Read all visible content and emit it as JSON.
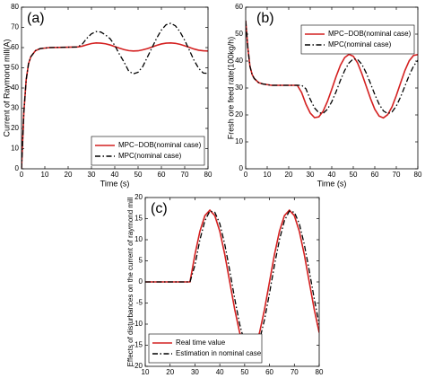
{
  "chart_data": [
    {
      "type": "line",
      "panel_label": "(a)",
      "xlabel": "Time (s)",
      "ylabel": "Current of Raymond mill(A)",
      "x": [
        0,
        1,
        2,
        3,
        4,
        6,
        8,
        12,
        16,
        20,
        24,
        26,
        28,
        30,
        32,
        34,
        36,
        38,
        40,
        42,
        44,
        46,
        48,
        50,
        52,
        54,
        56,
        58,
        60,
        62,
        64,
        66,
        68,
        70,
        72,
        74,
        76,
        78,
        80
      ],
      "series": [
        {
          "name": "MPC−DOB(nominal case)",
          "color": "#d42020",
          "style": "solid",
          "values": [
            0,
            28,
            44,
            52,
            55.5,
            58.5,
            59.5,
            60,
            60.1,
            60.2,
            60.3,
            60.7,
            61.4,
            62.0,
            62.3,
            62.2,
            61.9,
            61.3,
            60.5,
            59.7,
            59.0,
            58.5,
            58.3,
            58.4,
            58.9,
            59.5,
            60.3,
            61.1,
            61.8,
            62.2,
            62.3,
            62.1,
            61.6,
            60.9,
            60.1,
            59.3,
            58.7,
            58.4,
            58.3
          ]
        },
        {
          "name": "MPC(nominal case)",
          "color": "#000000",
          "style": "dashdot",
          "values": [
            0,
            28,
            44,
            52,
            55.5,
            58.5,
            59.5,
            60,
            60.1,
            60.2,
            60.3,
            61.6,
            64.6,
            66.8,
            67.9,
            67.7,
            66.3,
            64.4,
            61.1,
            56.7,
            52.8,
            48.3,
            47.0,
            47.8,
            50.6,
            55.3,
            60.0,
            64.7,
            68.7,
            71.3,
            72.0,
            70.8,
            67.8,
            63.6,
            58.7,
            53.7,
            49.7,
            47.4,
            47.2
          ]
        }
      ],
      "xlim": [
        0,
        80
      ],
      "xticks": [
        0,
        10,
        20,
        30,
        40,
        50,
        60,
        70,
        80
      ],
      "ylim": [
        0,
        80
      ],
      "yticks": [
        0,
        10,
        20,
        30,
        40,
        50,
        60,
        70,
        80
      ],
      "legend": "lower right"
    },
    {
      "type": "line",
      "panel_label": "(b)",
      "xlabel": "Time (s)",
      "ylabel": "Fresh ore feed rate(100kg/h)",
      "x": [
        0,
        1,
        2,
        3,
        4,
        6,
        8,
        12,
        16,
        20,
        24,
        26,
        28,
        30,
        32,
        34,
        36,
        38,
        40,
        42,
        44,
        46,
        48,
        50,
        52,
        54,
        56,
        58,
        60,
        62,
        64,
        66,
        68,
        70,
        72,
        74,
        76,
        78,
        80
      ],
      "series": [
        {
          "name": "MPC−DOB(nominal case)",
          "color": "#d42020",
          "style": "solid",
          "values": [
            55,
            45,
            38,
            35,
            33.5,
            32,
            31.5,
            31,
            31,
            31,
            31,
            28.3,
            24.0,
            20.7,
            19.0,
            19.3,
            21.4,
            25.0,
            29.5,
            34.2,
            38.4,
            41.3,
            42.5,
            41.8,
            39.3,
            35.3,
            30.7,
            26.1,
            22.1,
            19.6,
            18.9,
            20.1,
            23.0,
            27.2,
            31.9,
            36.5,
            40.1,
            42.1,
            42.4
          ]
        },
        {
          "name": "MPC(nominal case)",
          "color": "#000000",
          "style": "dashdot",
          "values": [
            55,
            45,
            38,
            35,
            33.5,
            32,
            31.5,
            31,
            31,
            31,
            31,
            31.0,
            29.7,
            25.8,
            22.6,
            20.8,
            20.6,
            22.1,
            24.9,
            28.6,
            32.8,
            36.5,
            39.3,
            40.8,
            40.6,
            38.8,
            35.6,
            31.7,
            27.6,
            24.0,
            21.5,
            20.5,
            21.1,
            23.3,
            26.7,
            30.7,
            34.7,
            38.1,
            40.3
          ]
        }
      ],
      "xlim": [
        0,
        80
      ],
      "xticks": [
        0,
        10,
        20,
        30,
        40,
        50,
        60,
        70,
        80
      ],
      "ylim": [
        0,
        60
      ],
      "yticks": [
        0,
        10,
        20,
        30,
        40,
        50,
        60
      ],
      "legend": "upper right"
    },
    {
      "type": "line",
      "panel_label": "(c)",
      "xlabel": "Time (s)",
      "ylabel": "Effects of disturbances on the current of raymond mill",
      "x": [
        10,
        14,
        18,
        22,
        26,
        28,
        30,
        32,
        34,
        36,
        38,
        40,
        42,
        44,
        46,
        48,
        50,
        52,
        54,
        56,
        58,
        60,
        62,
        64,
        66,
        68,
        70,
        72,
        74,
        76,
        78,
        80
      ],
      "series": [
        {
          "name": "Real time value",
          "color": "#d42020",
          "style": "solid",
          "values": [
            0,
            0,
            0,
            0,
            0,
            0,
            6.5,
            12.0,
            15.7,
            17.0,
            15.7,
            12.0,
            6.5,
            0,
            -6.5,
            -12.0,
            -15.7,
            -17.0,
            -15.7,
            -12.0,
            -6.5,
            0,
            6.5,
            12.0,
            15.7,
            17.0,
            15.7,
            12.0,
            6.5,
            0,
            -6.5,
            -12.0
          ]
        },
        {
          "name": "Estimation in nominal case",
          "color": "#000000",
          "style": "dashdot",
          "values": [
            0,
            0,
            0,
            0,
            0,
            0,
            4.0,
            10.0,
            14.5,
            16.8,
            16.5,
            13.8,
            8.9,
            2.7,
            -4.0,
            -10.0,
            -14.5,
            -16.8,
            -16.5,
            -13.8,
            -8.9,
            -2.7,
            4.0,
            10.0,
            14.5,
            16.8,
            16.5,
            13.8,
            8.9,
            2.7,
            -4.0,
            -10.0
          ]
        }
      ],
      "xlim": [
        10,
        80
      ],
      "xticks": [
        10,
        20,
        30,
        40,
        50,
        60,
        70,
        80
      ],
      "ylim": [
        -20,
        20
      ],
      "yticks": [
        -20,
        -15,
        -10,
        -5,
        0,
        5,
        10,
        15,
        20
      ],
      "legend": "lower left"
    }
  ]
}
